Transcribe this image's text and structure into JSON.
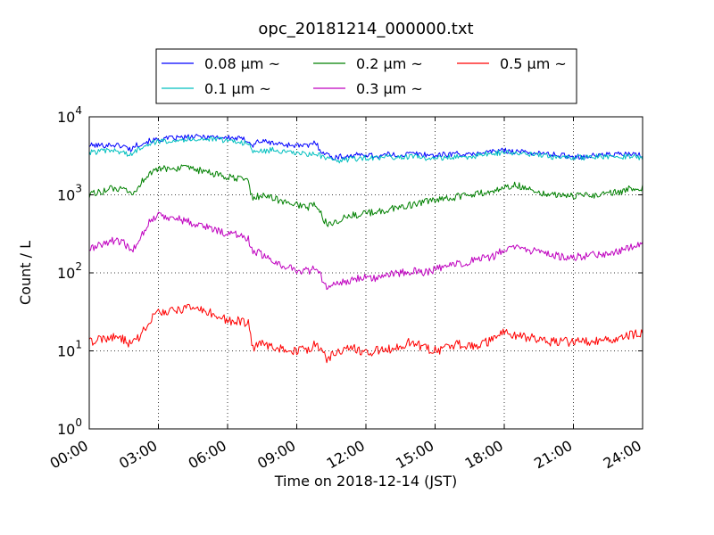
{
  "chart_data": {
    "type": "line",
    "title": "opc_20181214_000000.txt",
    "xlabel": "Time on 2018-12-14 (JST)",
    "ylabel": "Count / L",
    "x_unit": "hour",
    "xlim": [
      0,
      24
    ],
    "ylim": [
      1,
      10000
    ],
    "yscale": "log",
    "grid": true,
    "legend_position": "top-center",
    "x_ticks": [
      {
        "value": 0,
        "label": "00:00"
      },
      {
        "value": 3,
        "label": "03:00"
      },
      {
        "value": 6,
        "label": "06:00"
      },
      {
        "value": 9,
        "label": "09:00"
      },
      {
        "value": 12,
        "label": "12:00"
      },
      {
        "value": 15,
        "label": "15:00"
      },
      {
        "value": 18,
        "label": "18:00"
      },
      {
        "value": 21,
        "label": "21:00"
      },
      {
        "value": 24,
        "label": "24:00"
      }
    ],
    "y_ticks": [
      {
        "value": 1,
        "base": "10",
        "exp": "0"
      },
      {
        "value": 10,
        "base": "10",
        "exp": "1"
      },
      {
        "value": 100,
        "base": "10",
        "exp": "2"
      },
      {
        "value": 1000,
        "base": "10",
        "exp": "3"
      },
      {
        "value": 10000,
        "base": "10",
        "exp": "4"
      }
    ],
    "x": [
      0,
      0.5,
      1,
      1.5,
      1.8,
      2,
      2.3,
      2.6,
      3,
      3.5,
      4,
      4.5,
      5,
      5.5,
      6,
      6.3,
      6.6,
      6.9,
      7.1,
      7.3,
      7.6,
      8,
      8.5,
      9,
      9.5,
      9.8,
      10,
      10.3,
      10.6,
      11,
      11.5,
      12,
      12.5,
      13,
      13.5,
      14,
      14.5,
      15,
      15.5,
      16,
      16.5,
      17,
      17.5,
      18,
      18.5,
      19,
      19.5,
      20,
      20.5,
      21,
      21.5,
      22,
      22.5,
      23,
      23.5,
      24
    ],
    "series": [
      {
        "name": "0.08 μm ~",
        "color": "#0000ff",
        "values": [
          4300,
          4300,
          4400,
          4200,
          3800,
          4300,
          4600,
          4900,
          5100,
          5300,
          5400,
          5500,
          5600,
          5500,
          5400,
          5300,
          5200,
          5000,
          4200,
          4900,
          4800,
          4600,
          4400,
          4300,
          4200,
          4800,
          3800,
          3300,
          3000,
          3100,
          3200,
          3300,
          3100,
          3300,
          3200,
          3400,
          3300,
          3200,
          3300,
          3400,
          3200,
          3500,
          3600,
          3700,
          3600,
          3500,
          3400,
          3300,
          3200,
          3100,
          3100,
          3200,
          3300,
          3300,
          3300,
          3200
        ]
      },
      {
        "name": "0.1 μm ~",
        "color": "#00bfbf",
        "values": [
          3500,
          3600,
          3700,
          3500,
          3200,
          3600,
          4200,
          4600,
          4800,
          5000,
          5100,
          5200,
          5200,
          5100,
          5000,
          4900,
          4700,
          4500,
          3500,
          3700,
          3600,
          3800,
          3500,
          3400,
          3300,
          3400,
          3200,
          2900,
          2700,
          2800,
          2900,
          3000,
          2900,
          3100,
          3000,
          3100,
          3000,
          2900,
          3000,
          3100,
          3000,
          3300,
          3400,
          3500,
          3400,
          3300,
          3200,
          3100,
          3000,
          3000,
          3000,
          3100,
          3100,
          3100,
          3100,
          3000
        ]
      },
      {
        "name": "0.2 μm ~",
        "color": "#008000",
        "values": [
          1000,
          1100,
          1200,
          1150,
          1000,
          1100,
          1500,
          1900,
          2100,
          2200,
          2200,
          2100,
          2000,
          1800,
          1700,
          1600,
          1600,
          1500,
          850,
          950,
          1000,
          900,
          800,
          750,
          700,
          750,
          600,
          420,
          450,
          500,
          550,
          580,
          600,
          650,
          700,
          750,
          800,
          850,
          880,
          950,
          1000,
          1050,
          1100,
          1250,
          1350,
          1200,
          1100,
          1000,
          1000,
          950,
          1000,
          1000,
          1050,
          1100,
          1200,
          1250
        ]
      },
      {
        "name": "0.3 μm ~",
        "color": "#bf00bf",
        "values": [
          200,
          230,
          260,
          240,
          190,
          220,
          320,
          450,
          550,
          520,
          480,
          430,
          400,
          350,
          320,
          310,
          300,
          280,
          170,
          190,
          160,
          140,
          120,
          110,
          105,
          115,
          95,
          65,
          70,
          75,
          85,
          90,
          85,
          95,
          100,
          105,
          100,
          110,
          120,
          130,
          140,
          150,
          160,
          200,
          210,
          200,
          180,
          170,
          160,
          160,
          165,
          170,
          180,
          190,
          220,
          240
        ]
      },
      {
        "name": "0.5 μm ~",
        "color": "#ff0000",
        "values": [
          13,
          14,
          15,
          14,
          12,
          13,
          17,
          25,
          30,
          33,
          34,
          35,
          33,
          28,
          25,
          24,
          24,
          22,
          11,
          12,
          12,
          11,
          10.5,
          10,
          10.5,
          12,
          10.5,
          8,
          9,
          10,
          11,
          9.5,
          10,
          10.5,
          12,
          13,
          11,
          10,
          11,
          12,
          11.5,
          12,
          14,
          17,
          16,
          15,
          14,
          13,
          13,
          13,
          13,
          13.5,
          14,
          15,
          16,
          17
        ]
      }
    ]
  }
}
